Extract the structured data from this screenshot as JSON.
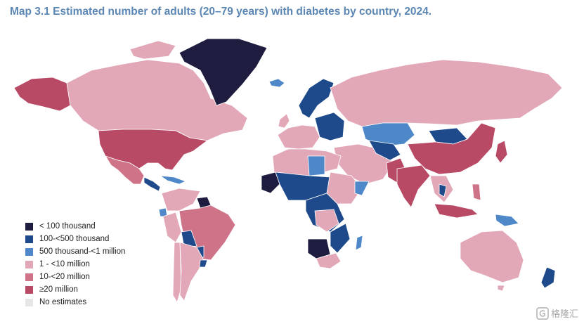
{
  "title": "Map 3.1 Estimated number of adults (20–79 years) with diabetes by country, 2024.",
  "colors": {
    "c1": "#1f1d3f",
    "c2": "#1e4a8b",
    "c3": "#4f88c8",
    "c4": "#e3a8b7",
    "c5": "#cf7389",
    "c6": "#b84a66",
    "c7": "#e6e6e6"
  },
  "legend": [
    {
      "label": "< 100 thousand",
      "color": "#1f1d3f"
    },
    {
      "label": "100-<500 thousand",
      "color": "#1e4a8b"
    },
    {
      "label": "500 thousand-<1 million",
      "color": "#4f88c8"
    },
    {
      "label": "1 - <10 million",
      "color": "#e3a8b7"
    },
    {
      "label": "10-<20 million",
      "color": "#cf7389"
    },
    {
      "label": "≥20 million",
      "color": "#b84a66"
    },
    {
      "label": "No estimates",
      "color": "#e6e6e6"
    }
  ],
  "watermark": "格隆汇"
}
